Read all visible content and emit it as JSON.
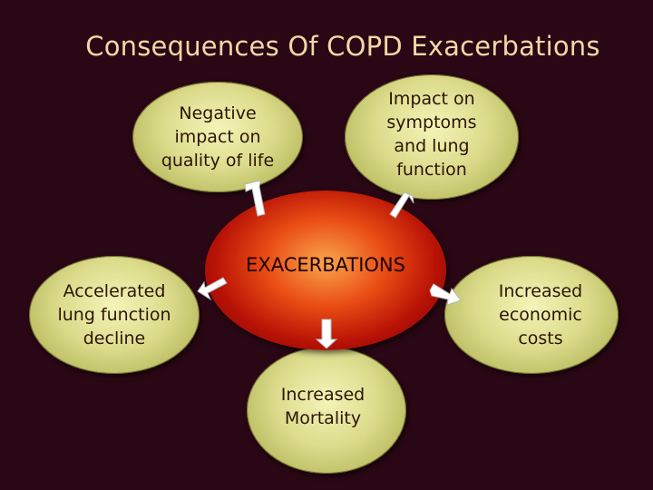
{
  "title": "Consequences Of COPD Exacerbations",
  "center": {
    "label": "EXACERBATIONS"
  },
  "nodes": {
    "quality_of_life": {
      "lines": [
        "Negative",
        "impact on",
        "quality of life"
      ]
    },
    "symptoms": {
      "lines": [
        "Impact on",
        "symptoms",
        "and lung",
        "function"
      ]
    },
    "lung_decline": {
      "lines": [
        "Accelerated",
        "lung function",
        "decline"
      ]
    },
    "economic": {
      "lines": [
        "Increased",
        "economic",
        "costs"
      ]
    },
    "mortality": {
      "lines": [
        "Increased",
        "Mortality"
      ]
    }
  },
  "colors": {
    "background": "#2a0714",
    "title": "#f2d8a6",
    "node_fill": "#dcdc8c",
    "center_fill": "#d9340c",
    "arrow_fill": "#ffffff"
  }
}
